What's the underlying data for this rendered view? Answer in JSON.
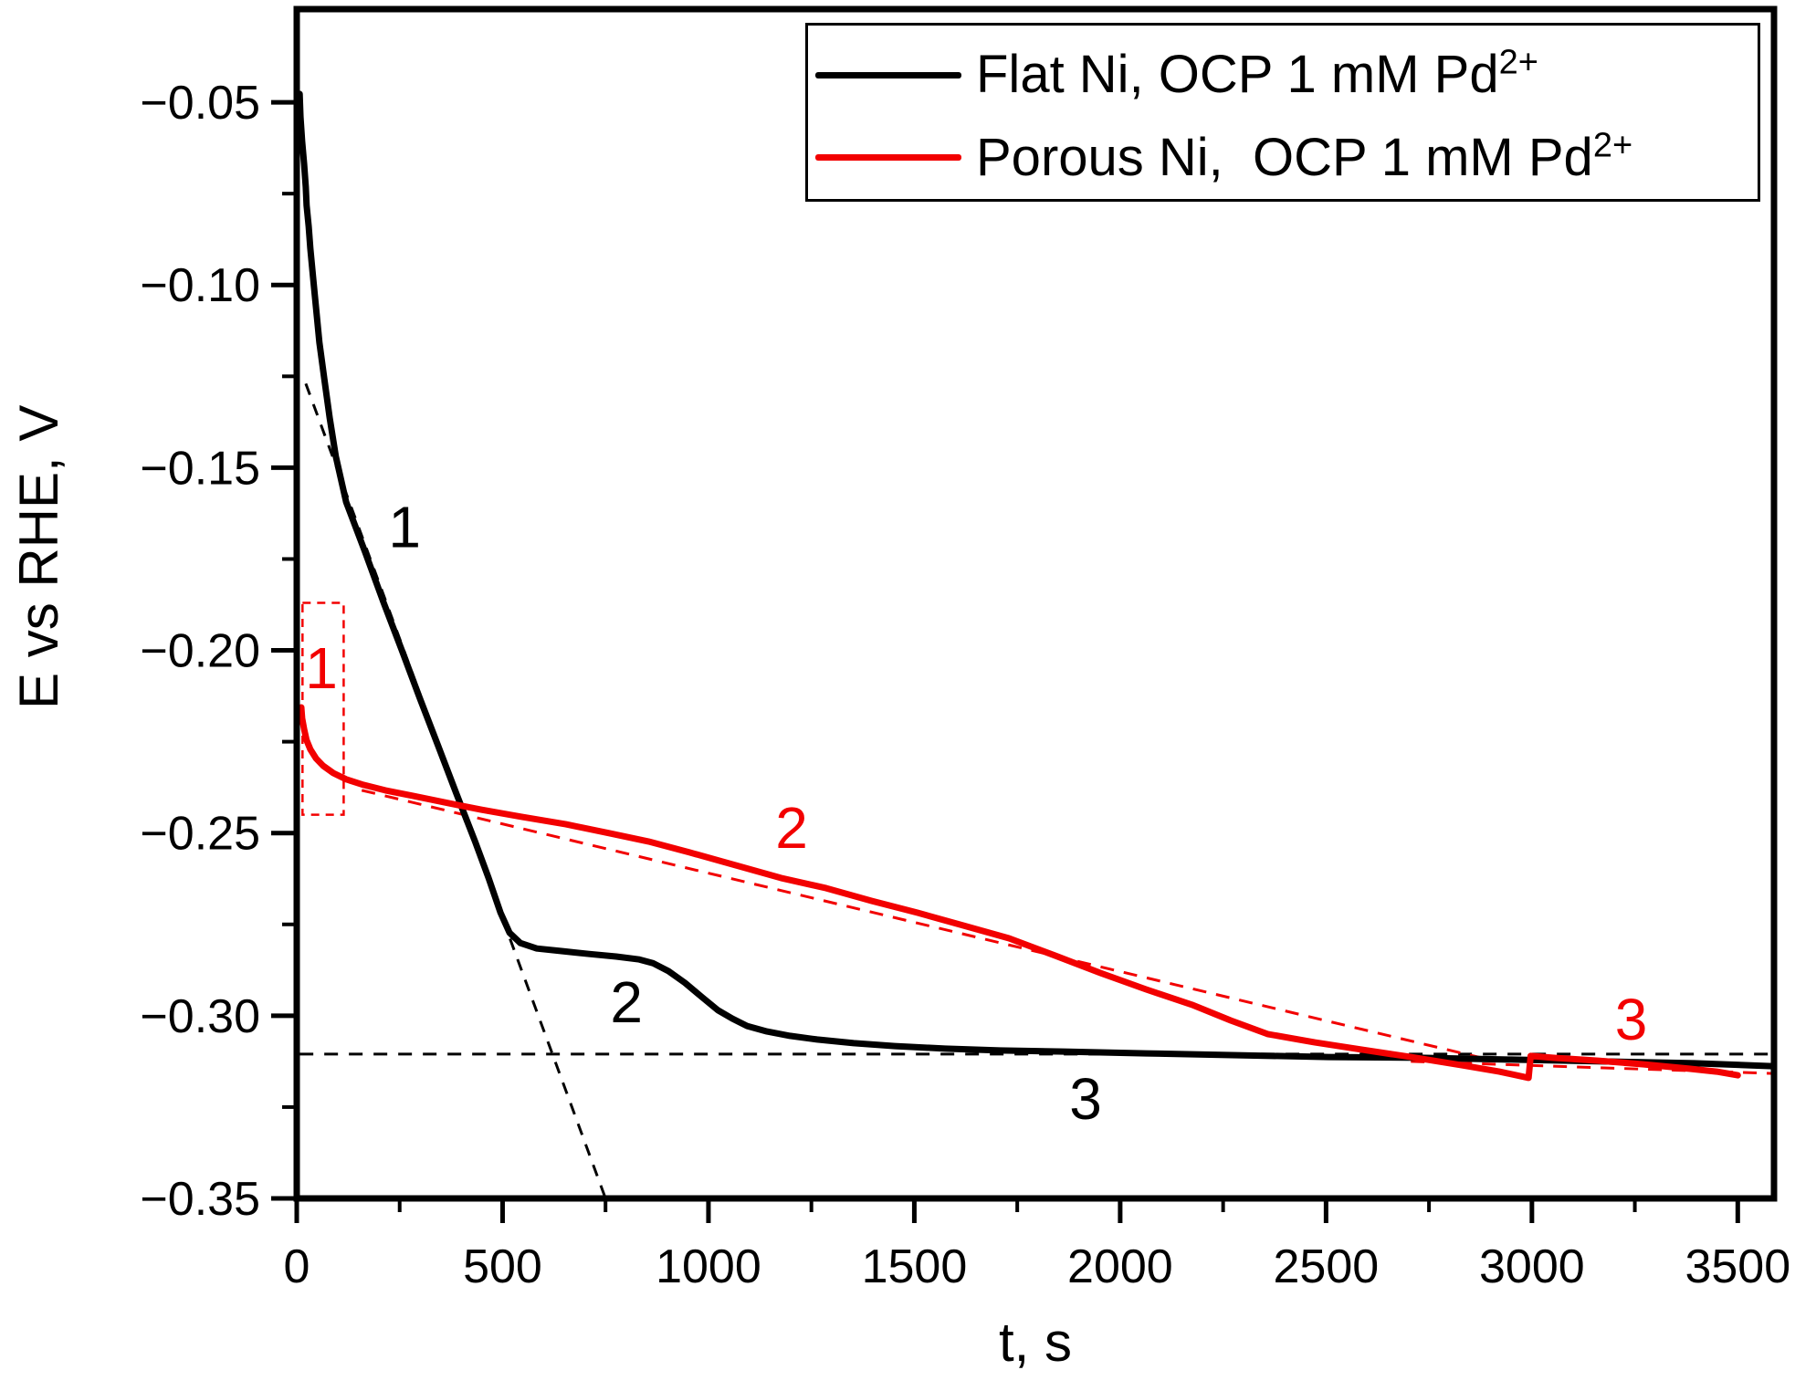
{
  "figure": {
    "background": "#ffffff",
    "frame_color": "#000000"
  },
  "legend": {
    "items": [
      {
        "text": "Flat Ni, OCP 1 mM Pd",
        "sup": "2+",
        "color": "#000000"
      },
      {
        "text": "Porous Ni,  OCP 1 mM Pd",
        "sup": "2+",
        "color": "#f20000"
      }
    ]
  },
  "axes": {
    "x": {
      "title": "t, s",
      "major_ticks": [
        {
          "t": 0,
          "label": "0"
        },
        {
          "t": 500,
          "label": "500"
        },
        {
          "t": 1000,
          "label": "1000"
        },
        {
          "t": 1500,
          "label": "1500"
        },
        {
          "t": 2000,
          "label": "2000"
        },
        {
          "t": 2500,
          "label": "2500"
        },
        {
          "t": 3000,
          "label": "3000"
        },
        {
          "t": 3500,
          "label": "3500"
        }
      ],
      "minor_ticks": [
        250,
        750,
        1250,
        1750,
        2250,
        2750,
        3250
      ]
    },
    "y": {
      "title": "E vs RHE, V",
      "major_ticks": [
        {
          "v": -0.05,
          "label": "−0.05"
        },
        {
          "v": -0.1,
          "label": "−0.10"
        },
        {
          "v": -0.15,
          "label": "−0.15"
        },
        {
          "v": -0.2,
          "label": "−0.20"
        },
        {
          "v": -0.25,
          "label": "−0.25"
        },
        {
          "v": -0.3,
          "label": "−0.30"
        },
        {
          "v": -0.35,
          "label": "−0.35"
        }
      ],
      "minor_ticks": [
        -0.075,
        -0.125,
        -0.175,
        -0.225,
        -0.275,
        -0.325
      ]
    }
  },
  "chart_data": {
    "type": "line",
    "title": "",
    "xlabel": "t, s",
    "ylabel": "E vs RHE, V",
    "xlim": [
      0,
      3588
    ],
    "ylim": [
      -0.35,
      -0.0245
    ],
    "grid": false,
    "legend_position": "top-right",
    "series": [
      {
        "name": "Flat Ni, OCP 1 mM Pd2+",
        "color": "#000000",
        "style": "solid",
        "width": 7,
        "x": [
          7,
          9,
          13,
          18,
          22,
          24,
          29,
          33,
          40,
          47,
          55,
          67,
          80,
          95,
          120,
          166,
          211,
          255,
          299,
          344,
          388,
          433,
          466,
          495,
          517,
          543,
          583,
          643,
          710,
          776,
          832,
          865,
          903,
          943,
          983,
          1023,
          1058,
          1094,
          1142,
          1198,
          1264,
          1353,
          1453,
          1575,
          1708,
          1863,
          2063,
          2285,
          2506,
          2728,
          2950,
          3172,
          3394,
          3584
        ],
        "y": [
          -0.0477,
          -0.054,
          -0.0607,
          -0.067,
          -0.0732,
          -0.0782,
          -0.084,
          -0.09,
          -0.0982,
          -0.1064,
          -0.1157,
          -0.1257,
          -0.1364,
          -0.1469,
          -0.1594,
          -0.1731,
          -0.1869,
          -0.1999,
          -0.2131,
          -0.2263,
          -0.2393,
          -0.2523,
          -0.2623,
          -0.2718,
          -0.2773,
          -0.2801,
          -0.2816,
          -0.2823,
          -0.2831,
          -0.2838,
          -0.2846,
          -0.2856,
          -0.2878,
          -0.291,
          -0.2948,
          -0.2985,
          -0.3008,
          -0.3028,
          -0.3043,
          -0.3055,
          -0.3065,
          -0.3075,
          -0.3083,
          -0.309,
          -0.3095,
          -0.3098,
          -0.3103,
          -0.3108,
          -0.3113,
          -0.3115,
          -0.312,
          -0.3125,
          -0.313,
          -0.3138
        ]
      },
      {
        "name": "Porous Ni, OCP 1 mM Pd2+",
        "color": "#f20000",
        "style": "solid",
        "width": 7,
        "x": [
          11,
          13,
          18,
          24,
          33,
          47,
          64,
          89,
          120,
          162,
          215,
          282,
          359,
          448,
          548,
          654,
          761,
          854,
          954,
          1065,
          1176,
          1286,
          1397,
          1508,
          1619,
          1730,
          1841,
          1952,
          2063,
          2174,
          2269,
          2358,
          2473,
          2588,
          2706,
          2828,
          2921,
          2992,
          2997,
          3050,
          3161,
          3272,
          3382,
          3449,
          3500
        ],
        "y": [
          -0.2156,
          -0.2186,
          -0.2216,
          -0.2246,
          -0.2271,
          -0.2296,
          -0.2316,
          -0.2336,
          -0.2353,
          -0.2368,
          -0.2383,
          -0.2398,
          -0.2416,
          -0.2436,
          -0.2456,
          -0.2476,
          -0.2501,
          -0.2523,
          -0.2553,
          -0.2588,
          -0.2623,
          -0.2651,
          -0.2686,
          -0.2718,
          -0.2753,
          -0.2788,
          -0.2835,
          -0.2883,
          -0.2928,
          -0.297,
          -0.3013,
          -0.305,
          -0.3073,
          -0.3093,
          -0.3113,
          -0.3135,
          -0.3153,
          -0.317,
          -0.311,
          -0.3115,
          -0.3123,
          -0.3133,
          -0.3145,
          -0.3153,
          -0.3163
        ]
      }
    ],
    "guides": [
      {
        "name": "flat-ni-region1-tangent",
        "color": "#000000",
        "dash": "13,11",
        "width": 3,
        "x": [
          22,
          750
        ],
        "y": [
          -0.127,
          -0.35
        ]
      },
      {
        "name": "flat-ni-region3-asymptote",
        "color": "#000000",
        "dash": "15,12",
        "width": 3,
        "x": [
          7,
          3582
        ],
        "y": [
          -0.3105,
          -0.3105
        ]
      },
      {
        "name": "porous-ni-region2-tangent",
        "color": "#f20000",
        "dash": "15,11",
        "width": 3,
        "x": [
          158,
          2895
        ],
        "y": [
          -0.2383,
          -0.312
        ]
      },
      {
        "name": "porous-ni-region3-tangent",
        "color": "#f20000",
        "dash": "15,11",
        "width": 3,
        "x": [
          2706,
          3584
        ],
        "y": [
          -0.3125,
          -0.3158
        ]
      }
    ],
    "box_annotation": {
      "name": "porous-ni-region1-box",
      "color": "#f20000",
      "t": [
        14,
        114
      ],
      "v": [
        -0.187,
        -0.245
      ],
      "dash": "9,7",
      "width": 2.5
    },
    "annotations": [
      {
        "text": "1",
        "color": "#000000",
        "t": 262,
        "v": -0.166
      },
      {
        "text": "2",
        "color": "#000000",
        "t": 801,
        "v": -0.296
      },
      {
        "text": "3",
        "color": "#000000",
        "t": 1916,
        "v": -0.3225
      },
      {
        "text": "1",
        "color": "#f20000",
        "t": 60,
        "v": -0.2046
      },
      {
        "text": "2",
        "color": "#f20000",
        "t": 1202,
        "v": -0.2483
      },
      {
        "text": "3",
        "color": "#f20000",
        "t": 3241,
        "v": -0.3008
      }
    ]
  }
}
